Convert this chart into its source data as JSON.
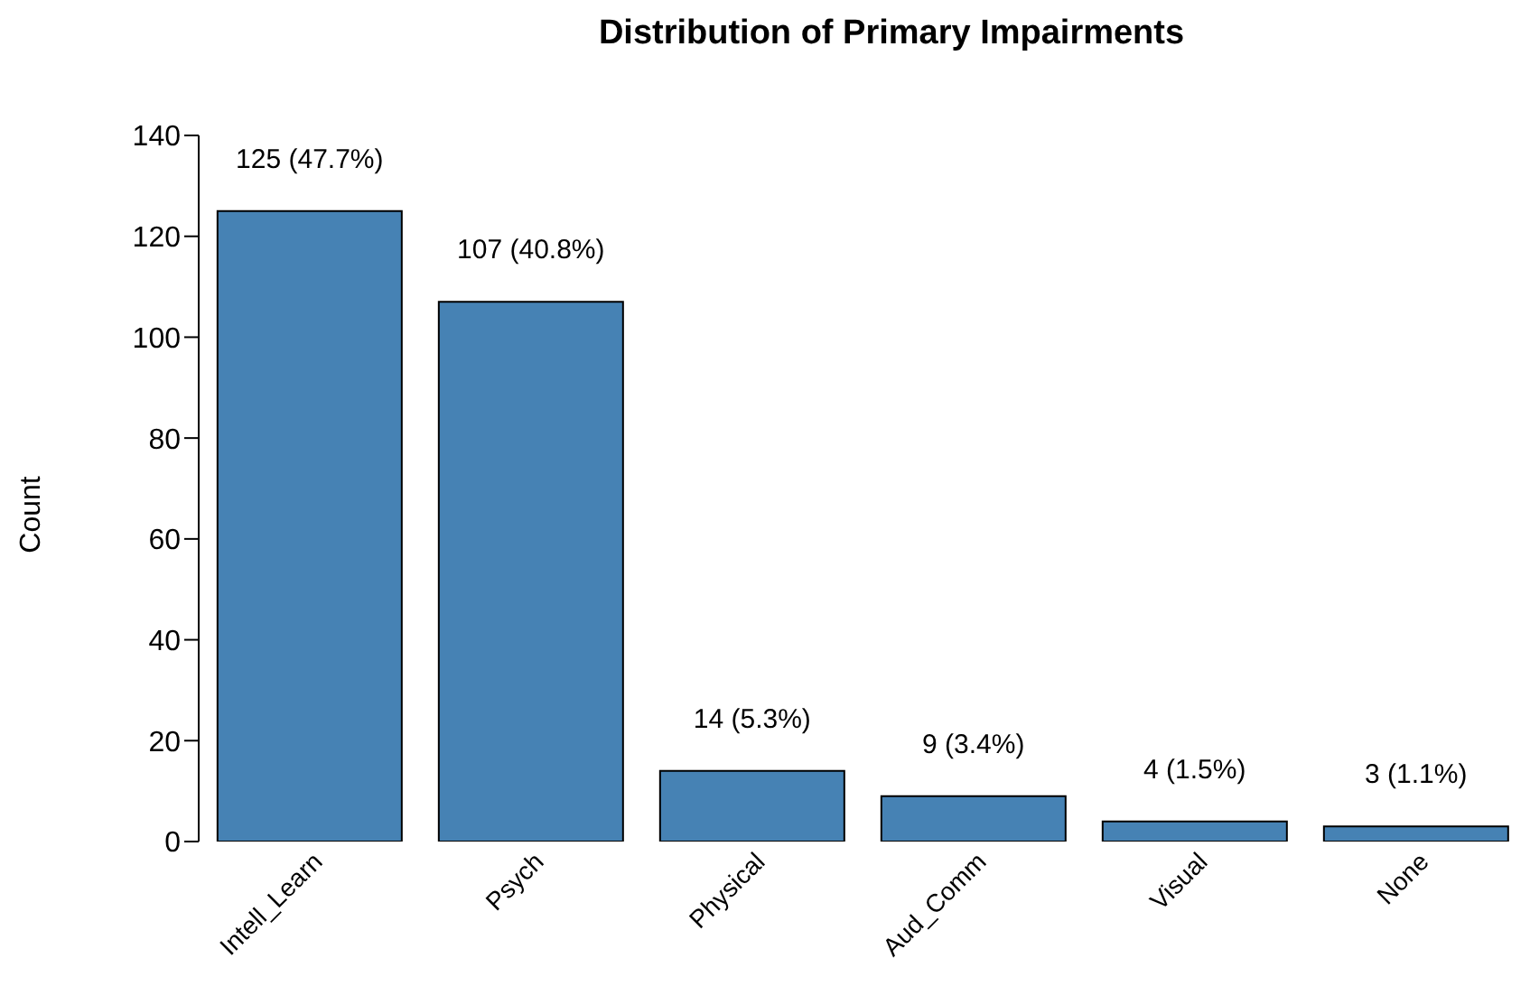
{
  "chart_data": {
    "type": "bar",
    "title": "Distribution of Primary Impairments",
    "ylabel": "Count",
    "categories": [
      "Intell_Learn",
      "Psych",
      "Physical",
      "Aud_Comm",
      "Visual",
      "None"
    ],
    "values": [
      125,
      107,
      14,
      9,
      4,
      3
    ],
    "value_labels": [
      "125 (47.7%)",
      "107 (40.8%)",
      "14 (5.3%)",
      "9 (3.4%)",
      "4 (1.5%)",
      "3 (1.1%)"
    ],
    "color": "#4682b4",
    "ylim": [
      0,
      140
    ],
    "yticks": [
      0,
      20,
      40,
      60,
      80,
      100,
      120,
      140
    ]
  }
}
